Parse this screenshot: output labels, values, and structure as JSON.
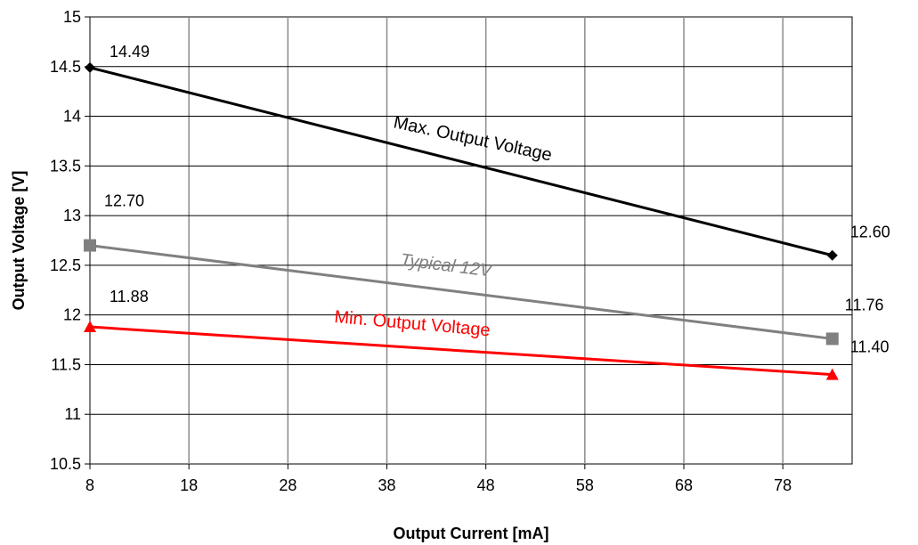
{
  "chart_data": {
    "type": "line",
    "xlabel": "Output Current [mA]",
    "ylabel": "Output Voltage [V]",
    "xlim": [
      8,
      85
    ],
    "ylim": [
      10.5,
      15
    ],
    "x_ticks": [
      "8",
      "18",
      "28",
      "38",
      "48",
      "58",
      "68",
      "78"
    ],
    "y_ticks": [
      "10.5",
      "11",
      "11.5",
      "12",
      "12.5",
      "13",
      "13.5",
      "14",
      "14.5",
      "15"
    ],
    "grid": true,
    "series": [
      {
        "name": "Max. Output Voltage",
        "color": "#000000",
        "marker": "diamond",
        "points": [
          {
            "x": 8,
            "y": 14.49,
            "label": "14.49"
          },
          {
            "x": 83,
            "y": 12.6,
            "label": "12.60"
          }
        ]
      },
      {
        "name": "Typical 12V",
        "color": "#808080",
        "marker": "square",
        "points": [
          {
            "x": 8,
            "y": 12.7,
            "label": "12.70"
          },
          {
            "x": 83,
            "y": 11.76,
            "label": "11.76"
          }
        ]
      },
      {
        "name": "Min. Output Voltage",
        "color": "#ff0000",
        "marker": "triangle",
        "points": [
          {
            "x": 8,
            "y": 11.88,
            "label": "11.88"
          },
          {
            "x": 83,
            "y": 11.4,
            "label": "11.40"
          }
        ]
      }
    ]
  }
}
